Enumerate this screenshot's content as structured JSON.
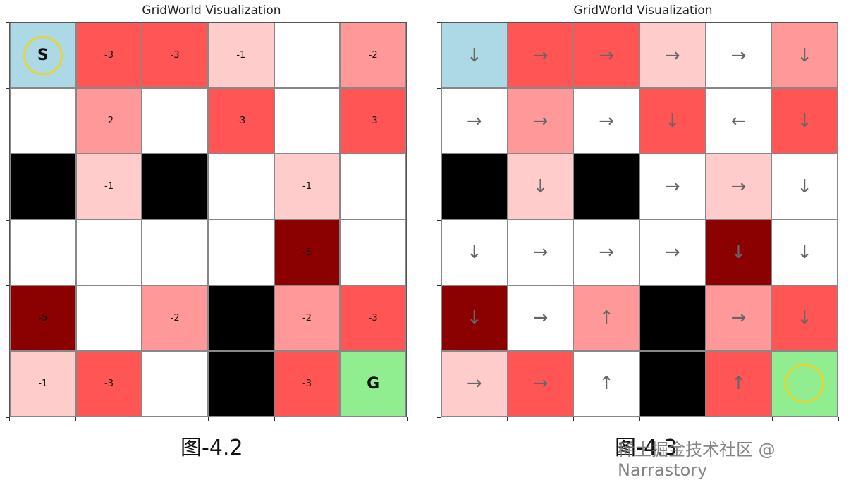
{
  "chart_data": [
    {
      "type": "heatmap",
      "title": "GridWorld Visualization",
      "rows": 6,
      "cols": 6,
      "cells": [
        [
          {
            "kind": "start",
            "label": "S"
          },
          {
            "kind": "reward",
            "value": -3,
            "label": "-3"
          },
          {
            "kind": "reward",
            "value": -3,
            "label": "-3"
          },
          {
            "kind": "reward",
            "value": -1,
            "label": "-1"
          },
          {
            "kind": "empty",
            "label": ""
          },
          {
            "kind": "reward",
            "value": -2,
            "label": "-2"
          }
        ],
        [
          {
            "kind": "empty",
            "label": ""
          },
          {
            "kind": "reward",
            "value": -2,
            "label": "-2"
          },
          {
            "kind": "empty",
            "label": ""
          },
          {
            "kind": "reward",
            "value": -3,
            "label": "-3"
          },
          {
            "kind": "empty",
            "label": ""
          },
          {
            "kind": "reward",
            "value": -3,
            "label": "-3"
          }
        ],
        [
          {
            "kind": "wall",
            "label": ""
          },
          {
            "kind": "reward",
            "value": -1,
            "label": "-1"
          },
          {
            "kind": "wall",
            "label": ""
          },
          {
            "kind": "empty",
            "label": ""
          },
          {
            "kind": "reward",
            "value": -1,
            "label": "-1"
          },
          {
            "kind": "empty",
            "label": ""
          }
        ],
        [
          {
            "kind": "empty",
            "label": ""
          },
          {
            "kind": "empty",
            "label": ""
          },
          {
            "kind": "empty",
            "label": ""
          },
          {
            "kind": "empty",
            "label": ""
          },
          {
            "kind": "reward",
            "value": -5,
            "label": "-5"
          },
          {
            "kind": "empty",
            "label": ""
          }
        ],
        [
          {
            "kind": "reward",
            "value": -5,
            "label": "-5"
          },
          {
            "kind": "empty",
            "label": ""
          },
          {
            "kind": "reward",
            "value": -2,
            "label": "-2"
          },
          {
            "kind": "wall",
            "label": ""
          },
          {
            "kind": "reward",
            "value": -2,
            "label": "-2"
          },
          {
            "kind": "reward",
            "value": -3,
            "label": "-3"
          }
        ],
        [
          {
            "kind": "reward",
            "value": -1,
            "label": "-1"
          },
          {
            "kind": "reward",
            "value": -3,
            "label": "-3"
          },
          {
            "kind": "empty",
            "label": ""
          },
          {
            "kind": "wall",
            "label": ""
          },
          {
            "kind": "reward",
            "value": -3,
            "label": "-3"
          },
          {
            "kind": "goal",
            "label": "G"
          }
        ]
      ],
      "agent_position": [
        0,
        0
      ],
      "caption": "图-4.2"
    },
    {
      "type": "heatmap",
      "title": "GridWorld Visualization",
      "rows": 6,
      "cols": 6,
      "policy_arrows": [
        [
          "↓",
          "→",
          "→",
          "→",
          "→",
          "↓"
        ],
        [
          "→",
          "→",
          "→",
          "↓",
          "←",
          "↓"
        ],
        [
          "",
          "↓",
          "",
          "→",
          "→",
          "↓"
        ],
        [
          "↓",
          "→",
          "→",
          "→",
          "↓",
          "↓"
        ],
        [
          "↓",
          "→",
          "↑",
          "",
          "→",
          "↓"
        ],
        [
          "→",
          "→",
          "↑",
          "",
          "↑",
          ""
        ]
      ],
      "agent_position": [
        5,
        5
      ],
      "caption": "图-4.3"
    }
  ],
  "colors": {
    "start": "#add8e6",
    "goal": "#90ee90",
    "wall": "#000000",
    "empty": "#ffffff",
    "reward_-1": "#ffcccc",
    "reward_-2": "#ff9999",
    "reward_-3": "#ff5555",
    "reward_-5": "#8b0000",
    "agent_ring": "#e3d636"
  },
  "watermark": "稀土掘金技术社区 @ Narrastory"
}
